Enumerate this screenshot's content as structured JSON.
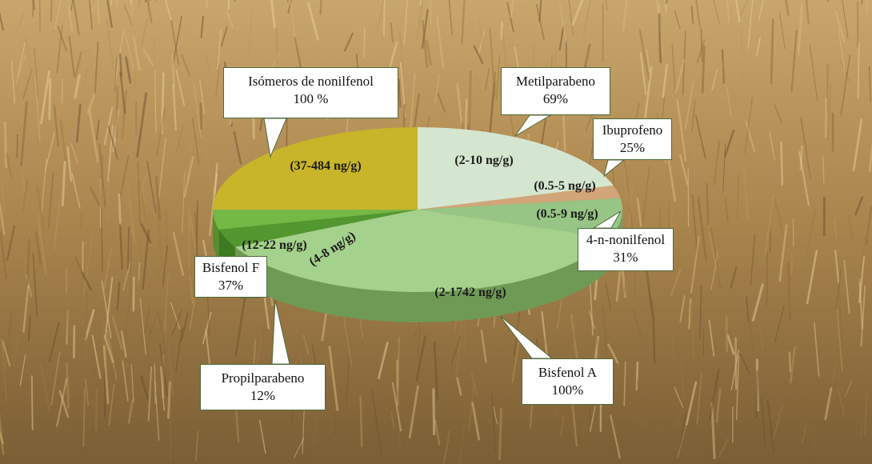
{
  "chart_data": {
    "type": "pie",
    "title": "",
    "slices": [
      {
        "key": "metil",
        "label": "Metilparabeno",
        "percent": "69%",
        "range": "(2-10 ng/g)",
        "color": "#d5e6d0",
        "side": "#b6c8b0"
      },
      {
        "key": "ibu",
        "label": "Ibuprofeno",
        "percent": "25%",
        "range": "(0.5-5 ng/g)",
        "color": "#d2a679",
        "side": "#b08a5e"
      },
      {
        "key": "nonil",
        "label": "4-n-nonilfenol",
        "percent": "31%",
        "range": "(0.5-9 ng/g)",
        "color": "#97c585",
        "side": "#739e63"
      },
      {
        "key": "bpa",
        "label": "Bisfenol A",
        "percent": "100%",
        "range": "(2-1742 ng/g)",
        "color": "#a4d18c",
        "side": "#6f9a55"
      },
      {
        "key": "propil",
        "label": "Propilparabeno",
        "percent": "12%",
        "range": "(4-8 ng/g)",
        "color": "#52972f",
        "side": "#3e7a22"
      },
      {
        "key": "bpf",
        "label": "Bisfenol F",
        "percent": "37%",
        "range": "(12-22 ng/g)",
        "color": "#74b845",
        "side": "#558f30"
      },
      {
        "key": "iso",
        "label": "Isómeros de nonilfenol",
        "percent": "100 %",
        "range": "(37-484 ng/g)",
        "color": "#c8b52a",
        "side": "#9c8b1c"
      }
    ]
  }
}
